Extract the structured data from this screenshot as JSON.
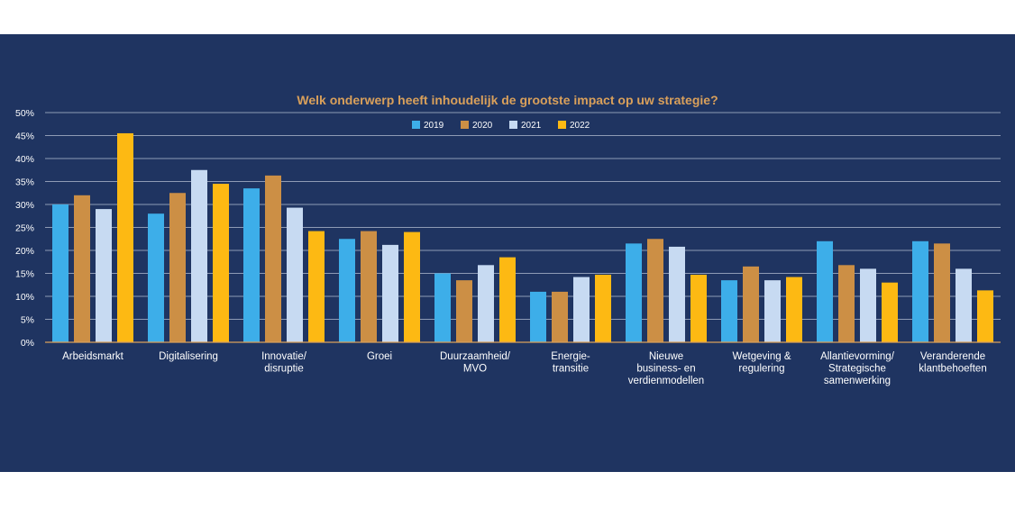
{
  "chart_data": {
    "type": "bar",
    "title": "Welk onderwerp heeft inhoudelijk de grootste impact op uw strategie?",
    "xlabel": "",
    "ylabel": "",
    "ylim": [
      0,
      50
    ],
    "y_ticks": [
      "0%",
      "5%",
      "10%",
      "15%",
      "20%",
      "25%",
      "30%",
      "35%",
      "40%",
      "45%",
      "50%"
    ],
    "categories": [
      [
        "Arbeidsmarkt"
      ],
      [
        "Digitalisering"
      ],
      [
        "Innovatie/",
        "disruptie"
      ],
      [
        "Groei"
      ],
      [
        "Duurzaamheid/",
        "MVO"
      ],
      [
        "Energie-",
        "transitie"
      ],
      [
        "Nieuwe",
        "business- en",
        "verdienmodellen"
      ],
      [
        "Wetgeving &",
        "regulering"
      ],
      [
        "Allantievorming/",
        "Strategische",
        "samenwerking"
      ],
      [
        "Veranderende",
        "klantbehoeften"
      ]
    ],
    "series": [
      {
        "name": "2019",
        "color": "#3daee9",
        "values": [
          30,
          28,
          33.5,
          22.5,
          15,
          11,
          21.5,
          13.5,
          22,
          22
        ]
      },
      {
        "name": "2020",
        "color": "#cc8f45",
        "values": [
          32,
          32.5,
          36.3,
          24.2,
          13.5,
          11,
          22.5,
          16.5,
          16.8,
          21.5
        ]
      },
      {
        "name": "2021",
        "color": "#c7daf2",
        "values": [
          29,
          37.5,
          29.3,
          21.2,
          16.8,
          14.2,
          20.8,
          13.5,
          16,
          16
        ]
      },
      {
        "name": "2022",
        "color": "#fdb913",
        "values": [
          45.5,
          34.5,
          24.2,
          24,
          18.5,
          14.7,
          14.7,
          14.2,
          13,
          11.3
        ]
      }
    ],
    "legend_position": "top-center",
    "grid": true,
    "colors": {
      "background": "#1f3461",
      "title": "#d9a05b",
      "text": "#ffffff",
      "grid": "#8e9bb5",
      "axis": "#d9a05b"
    }
  }
}
